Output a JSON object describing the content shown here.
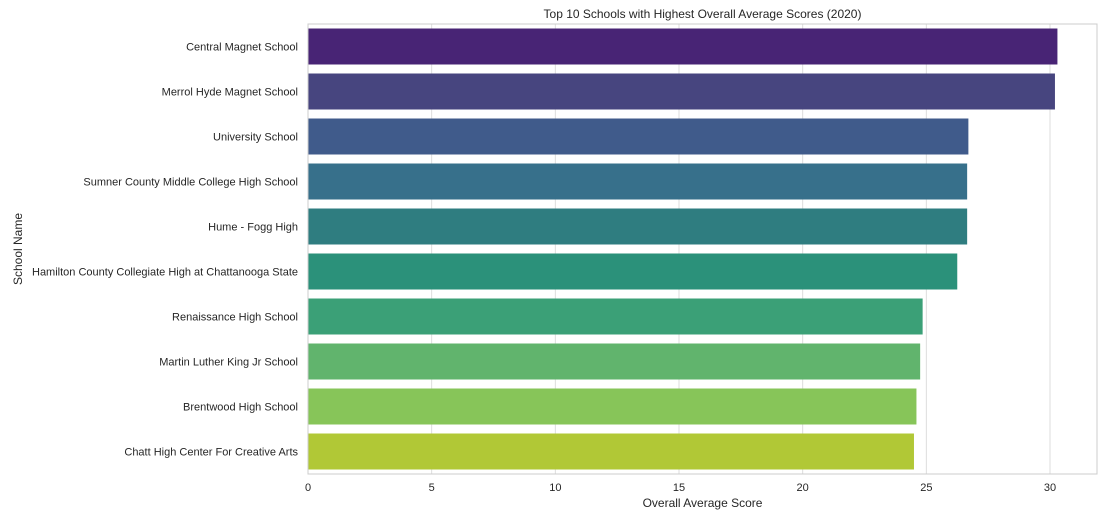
{
  "chart_data": {
    "type": "bar",
    "orientation": "horizontal",
    "title": "Top 10 Schools with Highest Overall Average Scores (2020)",
    "xlabel": "Overall Average Score",
    "ylabel": "School Name",
    "xlim": [
      0,
      31.9
    ],
    "xticks": [
      0,
      5,
      10,
      15,
      20,
      25,
      30
    ],
    "grid": true,
    "categories": [
      "Central Magnet School",
      "Merrol Hyde Magnet School",
      "University School",
      "Sumner County Middle College High School",
      "Hume - Fogg High",
      "Hamilton County Collegiate High at Chattanooga State",
      "Renaissance High School",
      "Martin Luther King Jr School",
      "Brentwood High School",
      "Chatt High Center For Creative Arts"
    ],
    "values": [
      30.3,
      30.2,
      26.7,
      26.65,
      26.65,
      26.25,
      24.85,
      24.75,
      24.6,
      24.5
    ],
    "colors": [
      "#482475",
      "#47457f",
      "#405b8b",
      "#37708b",
      "#2f7d80",
      "#2b917a",
      "#3ba077",
      "#61b46d",
      "#87c559",
      "#b1c836"
    ]
  }
}
